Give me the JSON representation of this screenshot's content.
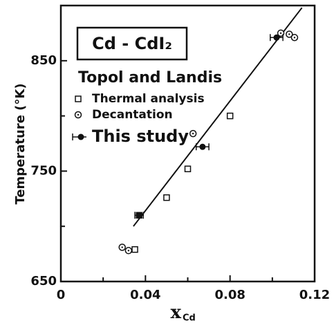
{
  "chart_data": {
    "type": "scatter",
    "legend_title": "Cd - CdI₂",
    "legend_group": "Topol and Landis",
    "ylabel": "Temperature (°K)",
    "xlabel": "x",
    "xlabel_sub": "Cd",
    "xlim": [
      0,
      0.12
    ],
    "ylim": [
      650,
      900
    ],
    "xticks": [
      0,
      0.04,
      0.08,
      0.12
    ],
    "yticks": [
      650,
      750,
      850
    ],
    "xticks_minor": [
      0.02,
      0.06,
      0.1
    ],
    "yticks_minor": [
      700,
      800
    ],
    "color": "#111111",
    "series": [
      {
        "name": "Thermal analysis",
        "marker": "square",
        "x": [
          0.035,
          0.037,
          0.05,
          0.06,
          0.08
        ],
        "values": [
          679,
          710,
          726,
          752,
          800
        ]
      },
      {
        "name": "Decantation",
        "marker": "circle",
        "x": [
          0.029,
          0.032,
          0.0625,
          0.104,
          0.108,
          0.1105
        ],
        "values": [
          681,
          678,
          784,
          875,
          874,
          871
        ]
      },
      {
        "name": "This study",
        "marker": "filled",
        "x": [
          0.037,
          0.067,
          0.102
        ],
        "xerr": [
          0.002,
          0.003,
          0.003
        ],
        "values": [
          710,
          772,
          871
        ]
      }
    ],
    "fit_line": {
      "x": [
        0.0343,
        0.114
      ],
      "values": [
        700,
        898
      ]
    }
  }
}
